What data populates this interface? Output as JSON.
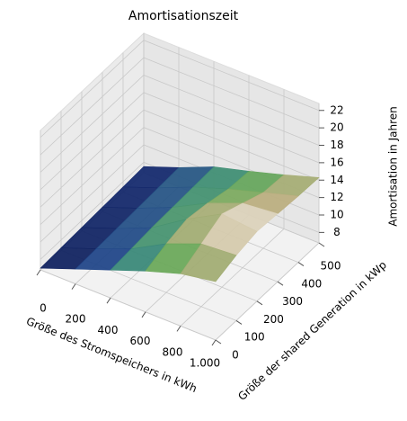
{
  "chart_data": {
    "type": "surface",
    "title": "Amortisationszeit",
    "x_label": "Größe des Stromspeichers in kWh",
    "y_label": "Größe der shared Generation in kWp",
    "z_label": "Amortisation in Jahren",
    "x": [
      0,
      200,
      400,
      600,
      800,
      1000
    ],
    "y": [
      0,
      100,
      200,
      300,
      400,
      500
    ],
    "z": [
      [
        7.0,
        7.1,
        7.2,
        7.3,
        7.4,
        7.5
      ],
      [
        8.5,
        8.6,
        8.7,
        8.8,
        8.9,
        9.0
      ],
      [
        10.0,
        10.2,
        10.4,
        10.5,
        10.6,
        10.7
      ],
      [
        11.5,
        12.4,
        13.0,
        12.6,
        12.0,
        11.8
      ],
      [
        12.8,
        14.0,
        15.2,
        14.2,
        13.2,
        13.0
      ],
      [
        13.5,
        14.3,
        14.8,
        14.6,
        14.4,
        14.3
      ]
    ],
    "colormap": "gist_earth",
    "xlim": [
      0,
      1000
    ],
    "ylim": [
      0,
      500
    ],
    "zlim": [
      6.8,
      22.8
    ],
    "xticks": [
      0,
      200,
      400,
      600,
      800,
      {
        "value": 1000,
        "label": "1.000"
      }
    ],
    "yticks": [
      0,
      100,
      200,
      300,
      400,
      500
    ],
    "zticks": [
      8,
      10,
      12,
      14,
      16,
      18,
      20,
      22
    ],
    "grid": true
  }
}
